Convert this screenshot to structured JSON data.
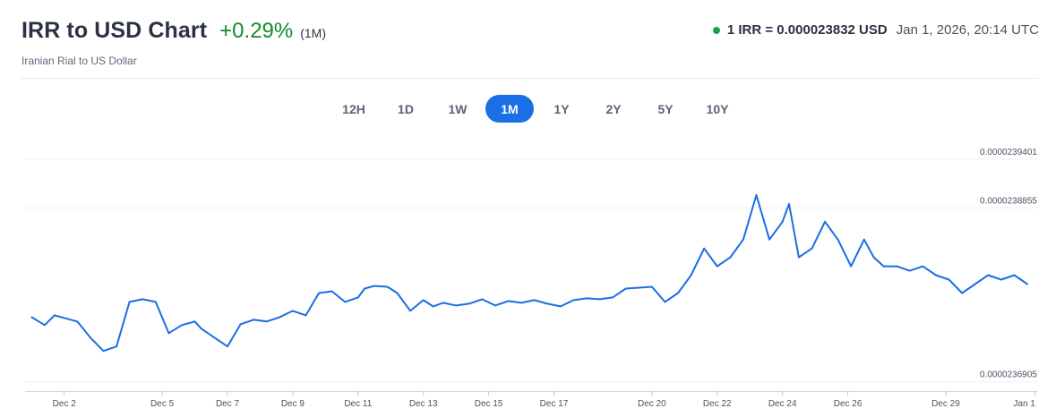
{
  "header": {
    "title": "IRR to USD Chart",
    "change": "+0.29%",
    "period": "(1M)",
    "subtitle": "Iranian Rial to US Dollar",
    "rate": "1 IRR = 0.000023832 USD",
    "timestamp": "Jan 1, 2026, 20:14 UTC"
  },
  "colors": {
    "line": "#1a6ee6",
    "positive": "#128a2e",
    "active_tab": "#1a6ee6",
    "status_dot": "#16a34a"
  },
  "range_tabs": [
    {
      "label": "12H",
      "active": false
    },
    {
      "label": "1D",
      "active": false
    },
    {
      "label": "1W",
      "active": false
    },
    {
      "label": "1M",
      "active": true
    },
    {
      "label": "1Y",
      "active": false
    },
    {
      "label": "2Y",
      "active": false
    },
    {
      "label": "5Y",
      "active": false
    },
    {
      "label": "10Y",
      "active": false
    }
  ],
  "chart_data": {
    "type": "line",
    "title": "",
    "xlabel": "",
    "ylabel": "",
    "y_ticks": [
      "0.0000239401",
      "0.0000238855",
      "0.0000236905"
    ],
    "x_ticks": [
      "Dec 2",
      "Dec 5",
      "Dec 7",
      "Dec 9",
      "Dec 11",
      "Dec 13",
      "Dec 15",
      "Dec 17",
      "Dec 20",
      "Dec 22",
      "Dec 24",
      "Dec 26",
      "Dec 29",
      "Jan 1"
    ],
    "ylim": [
      2.368e-05,
      2.39401e-05
    ],
    "x_day_range": [
      0.8,
      31.8
    ],
    "grid": true,
    "series": [
      {
        "x": [
          1.0,
          1.4,
          1.7,
          2.0,
          2.4,
          2.8,
          3.2,
          3.6,
          4.0,
          4.4,
          4.8,
          5.2,
          5.6,
          6.0,
          6.2,
          6.6,
          7.0,
          7.4,
          7.8,
          8.2,
          8.6,
          9.0,
          9.4,
          9.8,
          10.2,
          10.6,
          11.0,
          11.2,
          11.5,
          11.9,
          12.2,
          12.6,
          13.0,
          13.3,
          13.6,
          14.0,
          14.4,
          14.8,
          15.2,
          15.6,
          16.0,
          16.4,
          16.8,
          17.2,
          17.6,
          18.0,
          18.4,
          18.8,
          19.2,
          19.6,
          20.0,
          20.4,
          20.8,
          21.2,
          21.6,
          22.0,
          22.4,
          22.8,
          23.2,
          23.6,
          24.0,
          24.2,
          24.5,
          24.9,
          25.3,
          25.7,
          26.1,
          26.5,
          26.8,
          27.1,
          27.5,
          27.9,
          28.3,
          28.7,
          29.1,
          29.5,
          29.9,
          30.3,
          30.7,
          31.1,
          31.5
        ],
        "y": [
          2.3763e-05,
          2.3754e-05,
          2.3765e-05,
          2.3762e-05,
          2.3758e-05,
          2.374e-05,
          2.3725e-05,
          2.373e-05,
          2.378e-05,
          2.3783e-05,
          2.378e-05,
          2.3745e-05,
          2.3754e-05,
          2.3758e-05,
          2.375e-05,
          2.374e-05,
          2.373e-05,
          2.3755e-05,
          2.376e-05,
          2.3758e-05,
          2.3763e-05,
          2.377e-05,
          2.3765e-05,
          2.379e-05,
          2.3792e-05,
          2.378e-05,
          2.3785e-05,
          2.3795e-05,
          2.3798e-05,
          2.3797e-05,
          2.379e-05,
          2.377e-05,
          2.3782e-05,
          2.3775e-05,
          2.3779e-05,
          2.3776e-05,
          2.3778e-05,
          2.3783e-05,
          2.3776e-05,
          2.3781e-05,
          2.3779e-05,
          2.3782e-05,
          2.3778e-05,
          2.3775e-05,
          2.3782e-05,
          2.3784e-05,
          2.3783e-05,
          2.3785e-05,
          2.3795e-05,
          2.3796e-05,
          2.3797e-05,
          2.378e-05,
          2.379e-05,
          2.381e-05,
          2.384e-05,
          2.382e-05,
          2.383e-05,
          2.385e-05,
          2.39e-05,
          2.385e-05,
          2.387e-05,
          2.389e-05,
          2.383e-05,
          2.384e-05,
          2.387e-05,
          2.385e-05,
          2.382e-05,
          2.385e-05,
          2.383e-05,
          2.382e-05,
          2.382e-05,
          2.3815e-05,
          2.382e-05,
          2.381e-05,
          2.3805e-05,
          2.379e-05,
          2.38e-05,
          2.381e-05,
          2.3805e-05,
          2.381e-05,
          2.38e-05
        ]
      }
    ]
  }
}
